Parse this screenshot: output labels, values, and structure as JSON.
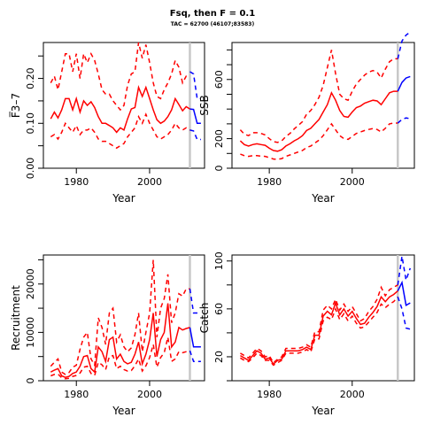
{
  "figure": {
    "title": "Fsq, then F = 0.1",
    "subtitle": "TAC = 62700 (46107;83583)"
  },
  "colors": {
    "history": "#ff0000",
    "projection": "#0000ff",
    "current_year_line": "#c8c8c8"
  },
  "chart_data": [
    {
      "id": "fbar",
      "type": "line",
      "xlabel": "Year",
      "ylabel": "F̅3–7",
      "xlim": [
        1971,
        2015
      ],
      "ylim": [
        0,
        0.28
      ],
      "xticks": [
        1980,
        2000
      ],
      "yticks": [
        "0.00",
        "0.10",
        "0.20"
      ],
      "ytick_values": [
        0,
        0.1,
        0.2
      ],
      "minor_yticks": [
        0.05,
        0.15,
        0.25
      ],
      "current_year": 2011,
      "x": [
        1973,
        1974,
        1975,
        1976,
        1977,
        1978,
        1979,
        1980,
        1981,
        1982,
        1983,
        1984,
        1985,
        1986,
        1987,
        1988,
        1989,
        1990,
        1991,
        1992,
        1993,
        1994,
        1995,
        1996,
        1997,
        1998,
        1999,
        2000,
        2001,
        2002,
        2003,
        2004,
        2005,
        2006,
        2007,
        2008,
        2009,
        2010,
        2011
      ],
      "series": [
        {
          "role": "estimate",
          "values": [
            0.11,
            0.125,
            0.112,
            0.13,
            0.155,
            0.155,
            0.13,
            0.155,
            0.125,
            0.15,
            0.14,
            0.148,
            0.135,
            0.115,
            0.1,
            0.1,
            0.095,
            0.09,
            0.08,
            0.09,
            0.085,
            0.11,
            0.132,
            0.135,
            0.18,
            0.16,
            0.18,
            0.155,
            0.13,
            0.108,
            0.1,
            0.105,
            0.115,
            0.13,
            0.155,
            0.142,
            0.128,
            0.137,
            0.132
          ]
        },
        {
          "role": "upper",
          "values": [
            0.19,
            0.205,
            0.175,
            0.215,
            0.255,
            0.255,
            0.215,
            0.255,
            0.2,
            0.255,
            0.235,
            0.255,
            0.24,
            0.21,
            0.175,
            0.165,
            0.165,
            0.15,
            0.14,
            0.13,
            0.14,
            0.185,
            0.21,
            0.215,
            0.28,
            0.245,
            0.275,
            0.235,
            0.19,
            0.16,
            0.155,
            0.175,
            0.19,
            0.21,
            0.24,
            0.225,
            0.19,
            0.205,
            0.205
          ]
        },
        {
          "role": "lower",
          "values": [
            0.07,
            0.075,
            0.065,
            0.08,
            0.1,
            0.09,
            0.08,
            0.095,
            0.075,
            0.085,
            0.085,
            0.09,
            0.08,
            0.065,
            0.06,
            0.06,
            0.055,
            0.05,
            0.045,
            0.05,
            0.055,
            0.07,
            0.08,
            0.09,
            0.115,
            0.1,
            0.12,
            0.1,
            0.085,
            0.07,
            0.065,
            0.07,
            0.075,
            0.085,
            0.1,
            0.09,
            0.085,
            0.09,
            0.085
          ]
        }
      ],
      "projection_x": [
        2011,
        2012,
        2013,
        2014
      ],
      "projection_series": [
        {
          "role": "estimate",
          "values": [
            0.132,
            0.131,
            0.1,
            0.1
          ]
        },
        {
          "role": "upper",
          "values": [
            0.215,
            0.21,
            0.155,
            0.155
          ]
        },
        {
          "role": "lower",
          "values": [
            0.085,
            0.083,
            0.064,
            0.064
          ]
        }
      ]
    },
    {
      "id": "ssb",
      "type": "line",
      "xlabel": "Year",
      "ylabel": "SSB",
      "xlim": [
        1971,
        2015
      ],
      "ylim": [
        0,
        850
      ],
      "xticks": [
        1980,
        2000
      ],
      "yticks": [
        "0",
        "200",
        "600"
      ],
      "ytick_values": [
        0,
        200,
        600
      ],
      "minor_yticks": [
        100,
        300,
        400,
        500,
        700,
        800
      ],
      "current_year": 2011,
      "x": [
        1973,
        1974,
        1975,
        1976,
        1977,
        1978,
        1979,
        1980,
        1981,
        1982,
        1983,
        1984,
        1985,
        1986,
        1987,
        1988,
        1989,
        1990,
        1991,
        1992,
        1993,
        1994,
        1995,
        1996,
        1997,
        1998,
        1999,
        2000,
        2001,
        2002,
        2003,
        2004,
        2005,
        2006,
        2007,
        2008,
        2009,
        2010,
        2011
      ],
      "series": [
        {
          "role": "estimate",
          "values": [
            185,
            160,
            150,
            160,
            165,
            160,
            155,
            135,
            120,
            115,
            125,
            150,
            165,
            185,
            200,
            220,
            255,
            270,
            300,
            330,
            380,
            430,
            510,
            460,
            390,
            350,
            345,
            380,
            410,
            420,
            440,
            450,
            460,
            455,
            430,
            470,
            510,
            520,
            520
          ]
        },
        {
          "role": "upper",
          "values": [
            260,
            230,
            220,
            240,
            240,
            235,
            225,
            200,
            180,
            175,
            185,
            215,
            235,
            265,
            290,
            315,
            365,
            390,
            430,
            480,
            560,
            680,
            800,
            640,
            500,
            470,
            460,
            520,
            570,
            600,
            630,
            650,
            660,
            650,
            610,
            670,
            720,
            740,
            740
          ]
        },
        {
          "role": "lower",
          "values": [
            95,
            85,
            80,
            85,
            85,
            82,
            80,
            72,
            62,
            60,
            65,
            80,
            90,
            100,
            110,
            120,
            140,
            150,
            170,
            190,
            220,
            260,
            300,
            260,
            220,
            200,
            195,
            215,
            235,
            245,
            255,
            262,
            268,
            262,
            245,
            270,
            300,
            305,
            305
          ]
        }
      ],
      "projection_x": [
        2011,
        2012,
        2013,
        2014
      ],
      "projection_series": [
        {
          "role": "estimate",
          "values": [
            520,
            580,
            610,
            620
          ]
        },
        {
          "role": "upper",
          "values": [
            740,
            860,
            900,
            920
          ]
        },
        {
          "role": "lower",
          "values": [
            305,
            330,
            340,
            335
          ]
        }
      ]
    },
    {
      "id": "recruitment",
      "type": "line",
      "xlabel": "Year",
      "ylabel": "Recruitment",
      "xlim": [
        1971,
        2015
      ],
      "ylim": [
        0,
        26000
      ],
      "xticks": [
        1980,
        2000
      ],
      "yticks": [
        "0",
        "10000",
        "20000"
      ],
      "ytick_values": [
        0,
        10000,
        20000
      ],
      "minor_yticks": [
        5000,
        15000,
        25000
      ],
      "current_year": 2011,
      "x": [
        1973,
        1974,
        1975,
        1976,
        1977,
        1978,
        1979,
        1980,
        1981,
        1982,
        1983,
        1984,
        1985,
        1986,
        1987,
        1988,
        1989,
        1990,
        1991,
        1992,
        1993,
        1994,
        1995,
        1996,
        1997,
        1998,
        1999,
        2000,
        2001,
        2002,
        2003,
        2004,
        2005,
        2006,
        2007,
        2008,
        2009,
        2010,
        2011
      ],
      "series": [
        {
          "role": "estimate",
          "values": [
            1800,
            2200,
            2500,
            1000,
            700,
            900,
            1500,
            1800,
            3000,
            5000,
            5200,
            2500,
            1800,
            7000,
            6000,
            4000,
            8500,
            9000,
            4500,
            5500,
            4000,
            3500,
            3800,
            5500,
            8000,
            3500,
            5500,
            8500,
            14000,
            5000,
            8500,
            10000,
            16000,
            7000,
            8000,
            11000,
            10500,
            10800,
            11000
          ]
        },
        {
          "role": "upper",
          "values": [
            3000,
            3800,
            4500,
            1800,
            1300,
            1700,
            2800,
            3200,
            6500,
            9000,
            10000,
            4500,
            3200,
            13000,
            11000,
            7500,
            14000,
            15000,
            8000,
            9500,
            7000,
            6000,
            6800,
            9500,
            14000,
            6000,
            10000,
            14000,
            25000,
            9000,
            15000,
            17000,
            22000,
            12000,
            14000,
            18000,
            17500,
            19000,
            19000
          ]
        },
        {
          "role": "lower",
          "values": [
            1000,
            1300,
            1400,
            600,
            400,
            500,
            900,
            1100,
            1600,
            2800,
            3000,
            1500,
            1100,
            3800,
            3300,
            2300,
            5000,
            5200,
            2500,
            3000,
            2300,
            2000,
            2100,
            3100,
            4500,
            2000,
            3100,
            4800,
            7500,
            2800,
            4800,
            5800,
            9000,
            4000,
            4500,
            6000,
            5800,
            6000,
            6200
          ]
        }
      ],
      "projection_x": [
        2011,
        2012,
        2013,
        2014
      ],
      "projection_series": [
        {
          "role": "estimate",
          "values": [
            11000,
            7000,
            7000,
            7000
          ]
        },
        {
          "role": "upper",
          "values": [
            19000,
            14000,
            14000,
            14000
          ]
        },
        {
          "role": "lower",
          "values": [
            6200,
            4000,
            4000,
            4000
          ]
        }
      ]
    },
    {
      "id": "catch",
      "type": "line",
      "xlabel": "Year",
      "ylabel": "Catch",
      "xlim": [
        1971,
        2015
      ],
      "ylim": [
        0,
        105
      ],
      "xticks": [
        1980,
        2000
      ],
      "yticks": [
        "20",
        "60",
        "100"
      ],
      "ytick_values": [
        20,
        60,
        100
      ],
      "minor_yticks": [
        0,
        40,
        80
      ],
      "current_year": 2011,
      "x": [
        1973,
        1974,
        1975,
        1976,
        1977,
        1978,
        1979,
        1980,
        1981,
        1982,
        1983,
        1984,
        1985,
        1986,
        1987,
        1988,
        1989,
        1990,
        1991,
        1992,
        1993,
        1994,
        1995,
        1996,
        1997,
        1998,
        1999,
        2000,
        2001,
        2002,
        2003,
        2004,
        2005,
        2006,
        2007,
        2008,
        2009,
        2010,
        2011
      ],
      "series": [
        {
          "role": "estimate",
          "values": [
            21,
            19,
            17,
            21,
            25,
            23,
            18,
            19,
            14,
            17,
            18,
            25,
            25,
            25,
            25,
            26,
            28,
            26,
            38,
            38,
            54,
            58,
            55,
            65,
            55,
            60,
            54,
            58,
            52,
            47,
            48,
            53,
            57,
            62,
            70,
            66,
            70,
            72,
            75
          ]
        },
        {
          "role": "upper",
          "values": [
            23,
            21,
            19,
            23,
            27,
            25,
            20,
            21,
            15,
            18,
            20,
            27,
            27,
            27,
            27,
            28,
            30,
            28,
            41,
            41,
            59,
            63,
            60,
            68,
            59,
            64,
            58,
            62,
            56,
            50,
            52,
            58,
            62,
            68,
            78,
            71,
            76,
            78,
            80
          ]
        },
        {
          "role": "lower",
          "values": [
            19,
            17,
            16,
            19,
            23,
            21,
            17,
            17,
            13,
            15,
            17,
            23,
            23,
            23,
            23,
            24,
            26,
            24,
            35,
            35,
            50,
            53,
            51,
            60,
            51,
            56,
            50,
            54,
            48,
            44,
            45,
            49,
            53,
            57,
            64,
            61,
            64,
            66,
            70
          ]
        }
      ],
      "projection_x": [
        2011,
        2012,
        2013,
        2014
      ],
      "projection_series": [
        {
          "role": "estimate",
          "values": [
            75,
            82,
            63,
            65
          ]
        },
        {
          "role": "upper",
          "values": [
            80,
            104,
            84,
            94
          ]
        },
        {
          "role": "lower",
          "values": [
            70,
            60,
            44,
            43
          ]
        }
      ]
    }
  ]
}
